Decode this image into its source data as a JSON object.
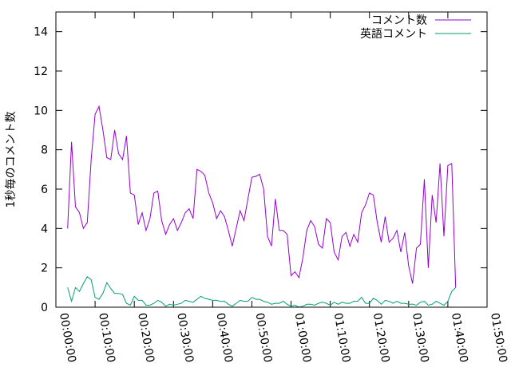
{
  "chart_data": {
    "type": "line",
    "title": "",
    "xlabel": "",
    "ylabel": "1秒毎のコメント数",
    "xlim": [
      0,
      110
    ],
    "ylim": [
      0,
      15
    ],
    "grid": false,
    "legend_position": "top-right",
    "x_ticks": [
      {
        "x": 0,
        "label": "00:00:00"
      },
      {
        "x": 10,
        "label": "00:10:00"
      },
      {
        "x": 20,
        "label": "00:20:00"
      },
      {
        "x": 30,
        "label": "00:30:00"
      },
      {
        "x": 40,
        "label": "00:40:00"
      },
      {
        "x": 50,
        "label": "00:50:00"
      },
      {
        "x": 60,
        "label": "01:00:00"
      },
      {
        "x": 70,
        "label": "01:10:00"
      },
      {
        "x": 80,
        "label": "01:20:00"
      },
      {
        "x": 90,
        "label": "01:30:00"
      },
      {
        "x": 100,
        "label": "01:40:00"
      },
      {
        "x": 110,
        "label": "01:50:00"
      }
    ],
    "y_ticks": [
      0,
      2,
      4,
      6,
      8,
      10,
      12,
      14
    ],
    "series": [
      {
        "name": "コメント数",
        "color": "#9400d3",
        "points": [
          [
            3,
            4.0
          ],
          [
            4,
            8.4
          ],
          [
            5,
            5.1
          ],
          [
            6,
            4.8
          ],
          [
            7,
            4.0
          ],
          [
            8,
            4.3
          ],
          [
            9,
            7.5
          ],
          [
            10,
            9.8
          ],
          [
            11,
            10.2
          ],
          [
            12,
            9.0
          ],
          [
            13,
            7.6
          ],
          [
            14,
            7.5
          ],
          [
            15,
            9.0
          ],
          [
            16,
            7.8
          ],
          [
            17,
            7.5
          ],
          [
            18,
            8.7
          ],
          [
            19,
            5.8
          ],
          [
            20,
            5.7
          ],
          [
            21,
            4.2
          ],
          [
            22,
            4.8
          ],
          [
            23,
            3.9
          ],
          [
            24,
            4.5
          ],
          [
            25,
            5.8
          ],
          [
            26,
            5.9
          ],
          [
            27,
            4.4
          ],
          [
            28,
            3.7
          ],
          [
            29,
            4.2
          ],
          [
            30,
            4.5
          ],
          [
            31,
            3.9
          ],
          [
            32,
            4.3
          ],
          [
            33,
            4.8
          ],
          [
            34,
            5.0
          ],
          [
            35,
            4.5
          ],
          [
            36,
            7.0
          ],
          [
            37,
            6.9
          ],
          [
            38,
            6.7
          ],
          [
            39,
            5.8
          ],
          [
            40,
            5.3
          ],
          [
            41,
            4.5
          ],
          [
            42,
            4.9
          ],
          [
            43,
            4.6
          ],
          [
            44,
            3.9
          ],
          [
            45,
            3.1
          ],
          [
            46,
            4.0
          ],
          [
            47,
            4.9
          ],
          [
            48,
            4.4
          ],
          [
            49,
            5.5
          ],
          [
            50,
            6.6
          ],
          [
            51,
            6.65
          ],
          [
            52,
            6.75
          ],
          [
            53,
            6.0
          ],
          [
            54,
            3.6
          ],
          [
            55,
            3.1
          ],
          [
            56,
            5.5
          ],
          [
            57,
            3.9
          ],
          [
            58,
            3.9
          ],
          [
            59,
            3.7
          ],
          [
            60,
            1.6
          ],
          [
            61,
            1.8
          ],
          [
            62,
            1.5
          ],
          [
            63,
            2.5
          ],
          [
            64,
            3.9
          ],
          [
            65,
            4.4
          ],
          [
            66,
            4.1
          ],
          [
            67,
            3.2
          ],
          [
            68,
            3.0
          ],
          [
            69,
            4.5
          ],
          [
            70,
            4.3
          ],
          [
            71,
            2.8
          ],
          [
            72,
            2.4
          ],
          [
            73,
            3.6
          ],
          [
            74,
            3.8
          ],
          [
            75,
            3.1
          ],
          [
            76,
            3.7
          ],
          [
            77,
            3.3
          ],
          [
            78,
            4.8
          ],
          [
            79,
            5.2
          ],
          [
            80,
            5.8
          ],
          [
            81,
            5.7
          ],
          [
            82,
            4.3
          ],
          [
            83,
            3.3
          ],
          [
            84,
            4.6
          ],
          [
            85,
            3.3
          ],
          [
            86,
            3.5
          ],
          [
            87,
            3.9
          ],
          [
            88,
            2.8
          ],
          [
            89,
            3.8
          ],
          [
            90,
            2.1
          ],
          [
            91,
            1.2
          ],
          [
            92,
            3.0
          ],
          [
            93,
            3.2
          ],
          [
            94,
            6.5
          ],
          [
            95,
            2.0
          ],
          [
            96,
            5.7
          ],
          [
            97,
            4.3
          ],
          [
            98,
            7.3
          ],
          [
            99,
            3.6
          ],
          [
            100,
            7.2
          ],
          [
            101,
            7.3
          ],
          [
            102,
            1.0
          ]
        ]
      },
      {
        "name": "英語コメント",
        "color": "#009e73",
        "points": [
          [
            3,
            1.0
          ],
          [
            4,
            0.3
          ],
          [
            5,
            1.0
          ],
          [
            6,
            0.8
          ],
          [
            7,
            1.2
          ],
          [
            8,
            1.55
          ],
          [
            9,
            1.4
          ],
          [
            10,
            0.5
          ],
          [
            11,
            0.4
          ],
          [
            12,
            0.7
          ],
          [
            13,
            1.25
          ],
          [
            14,
            0.95
          ],
          [
            15,
            0.7
          ],
          [
            16,
            0.7
          ],
          [
            17,
            0.65
          ],
          [
            18,
            0.2
          ],
          [
            19,
            0.1
          ],
          [
            20,
            0.55
          ],
          [
            21,
            0.35
          ],
          [
            22,
            0.35
          ],
          [
            23,
            0.1
          ],
          [
            24,
            0.1
          ],
          [
            25,
            0.2
          ],
          [
            26,
            0.35
          ],
          [
            27,
            0.25
          ],
          [
            28,
            0.05
          ],
          [
            29,
            0.15
          ],
          [
            30,
            0.1
          ],
          [
            31,
            0.15
          ],
          [
            32,
            0.2
          ],
          [
            33,
            0.35
          ],
          [
            34,
            0.3
          ],
          [
            35,
            0.25
          ],
          [
            36,
            0.4
          ],
          [
            37,
            0.55
          ],
          [
            38,
            0.45
          ],
          [
            39,
            0.4
          ],
          [
            40,
            0.35
          ],
          [
            41,
            0.35
          ],
          [
            42,
            0.3
          ],
          [
            43,
            0.3
          ],
          [
            44,
            0.15
          ],
          [
            45,
            0.05
          ],
          [
            46,
            0.2
          ],
          [
            47,
            0.35
          ],
          [
            48,
            0.3
          ],
          [
            49,
            0.3
          ],
          [
            50,
            0.5
          ],
          [
            51,
            0.4
          ],
          [
            52,
            0.4
          ],
          [
            53,
            0.3
          ],
          [
            54,
            0.25
          ],
          [
            55,
            0.15
          ],
          [
            56,
            0.2
          ],
          [
            57,
            0.2
          ],
          [
            58,
            0.3
          ],
          [
            59,
            0.15
          ],
          [
            60,
            0.05
          ],
          [
            61,
            0.1
          ],
          [
            62,
            0.0
          ],
          [
            63,
            0.05
          ],
          [
            64,
            0.15
          ],
          [
            65,
            0.15
          ],
          [
            66,
            0.1
          ],
          [
            67,
            0.2
          ],
          [
            68,
            0.25
          ],
          [
            69,
            0.2
          ],
          [
            70,
            0.1
          ],
          [
            71,
            0.25
          ],
          [
            72,
            0.15
          ],
          [
            73,
            0.25
          ],
          [
            74,
            0.2
          ],
          [
            75,
            0.2
          ],
          [
            76,
            0.3
          ],
          [
            77,
            0.3
          ],
          [
            78,
            0.5
          ],
          [
            79,
            0.2
          ],
          [
            80,
            0.2
          ],
          [
            81,
            0.45
          ],
          [
            82,
            0.35
          ],
          [
            83,
            0.15
          ],
          [
            84,
            0.35
          ],
          [
            85,
            0.3
          ],
          [
            86,
            0.2
          ],
          [
            87,
            0.3
          ],
          [
            88,
            0.2
          ],
          [
            89,
            0.2
          ],
          [
            90,
            0.15
          ],
          [
            91,
            0.15
          ],
          [
            92,
            0.1
          ],
          [
            93,
            0.25
          ],
          [
            94,
            0.3
          ],
          [
            95,
            0.1
          ],
          [
            96,
            0.15
          ],
          [
            97,
            0.3
          ],
          [
            98,
            0.2
          ],
          [
            99,
            0.1
          ],
          [
            100,
            0.3
          ],
          [
            101,
            0.8
          ],
          [
            102,
            1.0
          ]
        ]
      }
    ]
  }
}
